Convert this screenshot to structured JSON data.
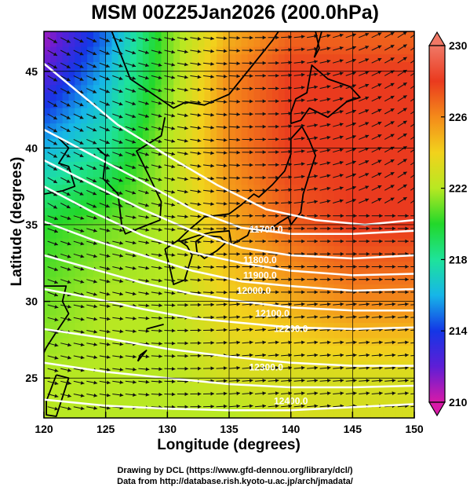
{
  "chart_data": {
    "type": "heatmap",
    "title": "MSM 00Z25Jan2026 (200.0hPa)",
    "xlabel": "Longitude (degrees)",
    "ylabel": "Latitude  (degrees)",
    "xlim": [
      120,
      150
    ],
    "ylim": [
      22.4,
      47.6
    ],
    "x_ticks": [
      120,
      125,
      130,
      135,
      140,
      145,
      150
    ],
    "y_ticks": [
      25,
      30,
      35,
      40,
      45
    ],
    "colorbar": {
      "min": 210,
      "max": 230,
      "tick_labels": [
        210,
        214,
        218,
        222,
        226,
        230
      ],
      "colors": [
        "#d81aa8",
        "#5e1ed6",
        "#1436e6",
        "#16b6e8",
        "#1ee39a",
        "#22d82a",
        "#b8e822",
        "#f2d21c",
        "#f48a1a",
        "#ea3a1e",
        "#f07866"
      ]
    },
    "temperature_field_K": {
      "lons": [
        120,
        125,
        130,
        135,
        140,
        145,
        150
      ],
      "lats": [
        47,
        45,
        40,
        35,
        30,
        25,
        23
      ],
      "values": [
        [
          211,
          215,
          221,
          225,
          227,
          227,
          227
        ],
        [
          212,
          216,
          221,
          226,
          228,
          228,
          228
        ],
        [
          216,
          218,
          222,
          226,
          228,
          228,
          228
        ],
        [
          220,
          221,
          222,
          225,
          227,
          228,
          228
        ],
        [
          221,
          222,
          222,
          224,
          225,
          226,
          226
        ],
        [
          222,
          222,
          222,
          223,
          223,
          223,
          223
        ],
        [
          222,
          222,
          222,
          222,
          223,
          223,
          223
        ]
      ]
    },
    "height_contours": [
      {
        "label": "11700.0",
        "lon": 138,
        "lat": 34.5
      },
      {
        "label": "11800.0",
        "lon": 137.5,
        "lat": 32.5
      },
      {
        "label": "11900.0",
        "lon": 137.5,
        "lat": 31.5
      },
      {
        "label": "12000.0",
        "lon": 137,
        "lat": 30.5
      },
      {
        "label": "12100.0",
        "lon": 138.5,
        "lat": 29
      },
      {
        "label": "12200.0",
        "lon": 140,
        "lat": 28
      },
      {
        "label": "12300.0",
        "lon": 138,
        "lat": 25.5
      },
      {
        "label": "12400.0",
        "lon": 140,
        "lat": 23.3
      }
    ],
    "wind_field": "westerly vectors (plotted as arrows)"
  },
  "credits": {
    "line1": "Drawing by DCL (https://www.gfd-dennou.org/library/dcl/)",
    "line2": "Data from http://database.rish.kyoto-u.ac.jp/arch/jmadata/"
  }
}
